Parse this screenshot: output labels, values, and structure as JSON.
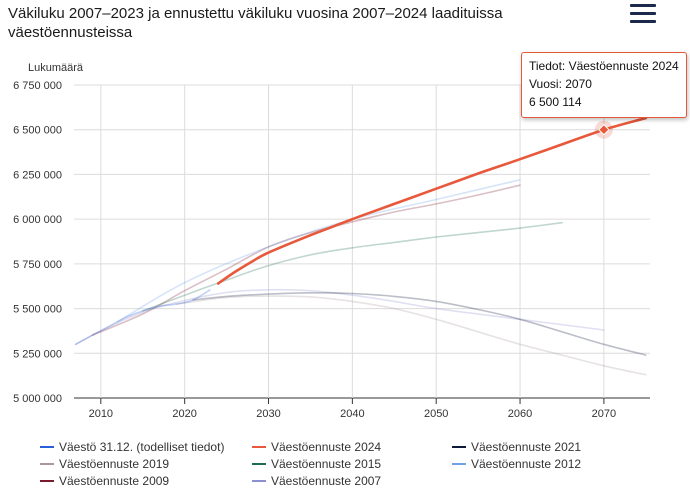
{
  "header": {
    "title": "Väkiluku 2007–2023 ja ennustettu väkiluku vuosina 2007–2024 laadituissa väestöennusteissa",
    "menu_icon": "hamburger-menu-icon"
  },
  "tooltip": {
    "line1": "Tiedot: Väestöennuste 2024",
    "line2": "Vuosi: 2070",
    "line3": "6 500 114"
  },
  "chart_data": {
    "type": "line",
    "ylabel": "Lukumäärä",
    "xlim": [
      2006.8,
      2075.5
    ],
    "ylim": [
      5000000,
      6750000
    ],
    "y_ticks": [
      {
        "value": 5000000,
        "label": "5 000 000"
      },
      {
        "value": 5250000,
        "label": "5 250 000"
      },
      {
        "value": 5500000,
        "label": "5 500 000"
      },
      {
        "value": 5750000,
        "label": "5 750 000"
      },
      {
        "value": 6000000,
        "label": "6 000 000"
      },
      {
        "value": 6250000,
        "label": "6 250 000"
      },
      {
        "value": 6500000,
        "label": "6 500 000"
      },
      {
        "value": 6750000,
        "label": "6 750 000"
      }
    ],
    "x_ticks": [
      2010,
      2020,
      2030,
      2040,
      2050,
      2060,
      2070
    ],
    "series": [
      {
        "name": "Väestö 31.12. (todelliset tiedot)",
        "color": "#2b5fd9",
        "x": [
          2007,
          2009,
          2011,
          2013,
          2015,
          2017,
          2019,
          2021,
          2023
        ],
        "y": [
          5300000,
          5351000,
          5401000,
          5451000,
          5487000,
          5513000,
          5525000,
          5548000,
          5604000
        ]
      },
      {
        "name": "Väestöennuste 2024",
        "color": "#e8583a",
        "x": [
          2024,
          2026,
          2028,
          2030,
          2035,
          2040,
          2045,
          2050,
          2055,
          2060,
          2065,
          2070,
          2075
        ],
        "y": [
          5640000,
          5705000,
          5762000,
          5813000,
          5910000,
          6000000,
          6085000,
          6170000,
          6255000,
          6335000,
          6418000,
          6500114,
          6565000
        ]
      },
      {
        "name": "Väestöennuste 2021",
        "color": "#0d1a3a",
        "x": [
          2021,
          2025,
          2030,
          2035,
          2040,
          2045,
          2050,
          2055,
          2060,
          2065,
          2070,
          2075
        ],
        "y": [
          5548000,
          5568000,
          5581000,
          5588000,
          5584000,
          5568000,
          5540000,
          5495000,
          5440000,
          5370000,
          5300000,
          5240000
        ]
      },
      {
        "name": "Väestöennuste 2019",
        "color": "#a9979f",
        "x": [
          2019,
          2025,
          2030,
          2035,
          2040,
          2045,
          2050,
          2055,
          2060,
          2065,
          2070,
          2075
        ],
        "y": [
          5525000,
          5562000,
          5570000,
          5565000,
          5540000,
          5500000,
          5440000,
          5370000,
          5300000,
          5240000,
          5180000,
          5130000
        ]
      },
      {
        "name": "Väestöennuste 2015",
        "color": "#1d6b52",
        "x": [
          2015,
          2020,
          2025,
          2030,
          2035,
          2040,
          2045,
          2050,
          2055,
          2060,
          2065
        ],
        "y": [
          5487000,
          5575000,
          5660000,
          5740000,
          5800000,
          5840000,
          5870000,
          5900000,
          5925000,
          5950000,
          5980000
        ]
      },
      {
        "name": "Väestöennuste 2012",
        "color": "#6fa2e8",
        "x": [
          2012,
          2020,
          2030,
          2040,
          2050,
          2060
        ],
        "y": [
          5426000,
          5645000,
          5845000,
          6000000,
          6110000,
          6220000
        ]
      },
      {
        "name": "Väestöennuste 2009",
        "color": "#7a1a2e",
        "x": [
          2009,
          2015,
          2020,
          2025,
          2030,
          2035,
          2040,
          2045,
          2050,
          2055,
          2060
        ],
        "y": [
          5351000,
          5470000,
          5600000,
          5720000,
          5845000,
          5925000,
          5985000,
          6040000,
          6085000,
          6135000,
          6190000
        ]
      },
      {
        "name": "Väestöennuste 2007",
        "color": "#8e8fd0",
        "x": [
          2007,
          2010,
          2015,
          2020,
          2025,
          2030,
          2035,
          2040,
          2045,
          2050,
          2060,
          2070
        ],
        "y": [
          5300000,
          5375000,
          5480000,
          5545000,
          5590000,
          5605000,
          5600000,
          5575000,
          5540000,
          5500000,
          5440000,
          5380000
        ]
      }
    ],
    "highlight": {
      "series": "Väestöennuste 2024",
      "x": 2070,
      "y": 6500114
    }
  }
}
